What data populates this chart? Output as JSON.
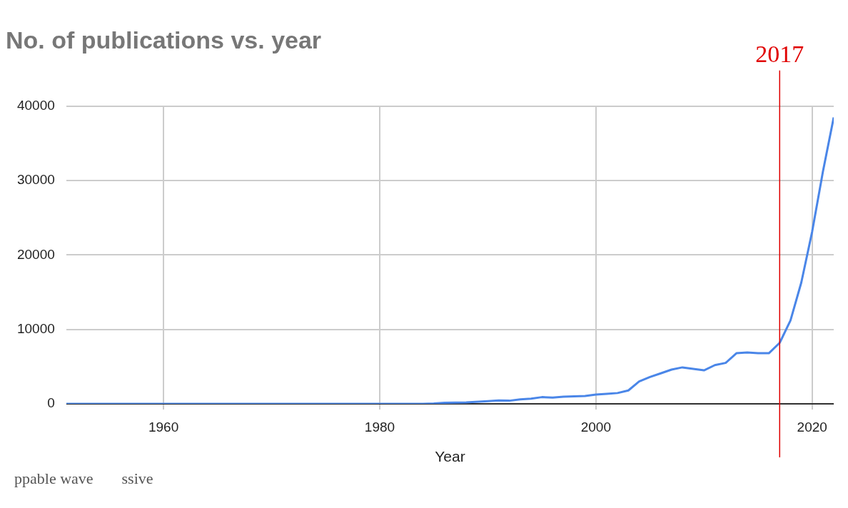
{
  "chart_data": {
    "type": "line",
    "title": "No. of publications vs. year",
    "xlabel": "Year",
    "x": [
      1951,
      1960,
      1970,
      1980,
      1984,
      1985,
      1986,
      1988,
      1990,
      1991,
      1992,
      1993,
      1994,
      1995,
      1996,
      1997,
      1998,
      1999,
      2000,
      2001,
      2002,
      2003,
      2004,
      2005,
      2006,
      2007,
      2008,
      2009,
      2010,
      2011,
      2012,
      2013,
      2014,
      2015,
      2016,
      2017,
      2018,
      2019,
      2020,
      2021,
      2022
    ],
    "series": [
      {
        "color": "#4a86e8",
        "values": [
          0,
          0,
          0,
          0,
          0,
          50,
          150,
          200,
          350,
          450,
          420,
          600,
          700,
          900,
          850,
          950,
          1000,
          1050,
          1250,
          1350,
          1450,
          1800,
          3000,
          3600,
          4100,
          4600,
          4900,
          4700,
          4500,
          5200,
          5500,
          6800,
          6900,
          6800,
          6800,
          8200,
          11200,
          16300,
          23100,
          31200,
          38500
        ]
      }
    ],
    "xlim": [
      1951,
      2022
    ],
    "xticks": [
      1960,
      1980,
      2000,
      2020
    ],
    "ylim": [
      0,
      40000
    ],
    "yticks": [
      0,
      10000,
      20000,
      30000,
      40000
    ],
    "grid": true,
    "legend": false,
    "marker": "none",
    "line_style": "solid",
    "ref_lines": [
      {
        "axis": "x",
        "value": 2017,
        "label": "2017",
        "color": "#e00000"
      }
    ],
    "annotations": [
      "ppable wave",
      "ssive"
    ]
  }
}
